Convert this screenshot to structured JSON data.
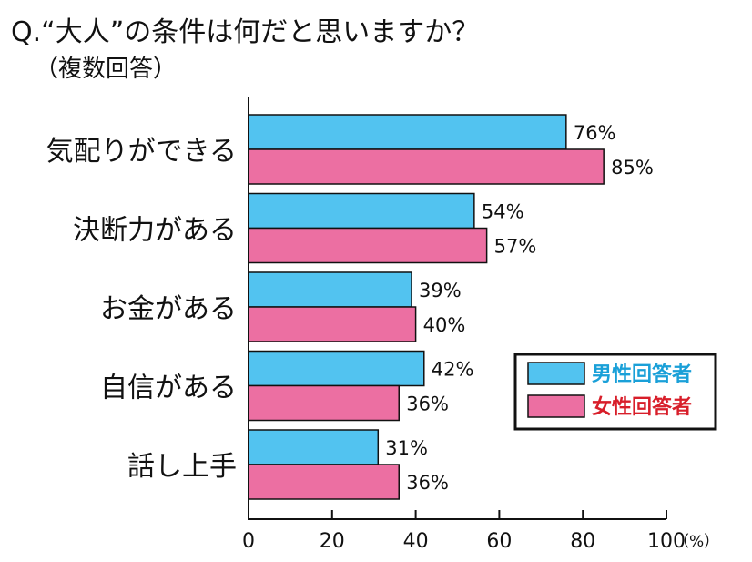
{
  "chart_data": {
    "type": "bar",
    "orientation": "horizontal",
    "title": "Q.“大人”の条件は何だと思いますか？",
    "subtitle": "（複数回答）",
    "categories": [
      "気配りができる",
      "決断力がある",
      "お金がある",
      "自信がある",
      "話し上手"
    ],
    "series": [
      {
        "name": "男性回答者",
        "color": "#52c3f0",
        "text_color": "#1aa0d8",
        "values": [
          76,
          54,
          39,
          42,
          31
        ],
        "labels": [
          "76%",
          "54%",
          "39%",
          "42%",
          "31%"
        ]
      },
      {
        "name": "女性回答者",
        "color": "#ec6fa2",
        "text_color": "#d81e2a",
        "values": [
          85,
          57,
          40,
          36,
          36
        ],
        "labels": [
          "85%",
          "57%",
          "40%",
          "36%",
          "36%"
        ]
      }
    ],
    "xlim": [
      0,
      100
    ],
    "xticks": [
      "0",
      "20",
      "40",
      "60",
      "80",
      "100"
    ],
    "xunit": "（%）",
    "grid": false,
    "legend_position": "right"
  }
}
